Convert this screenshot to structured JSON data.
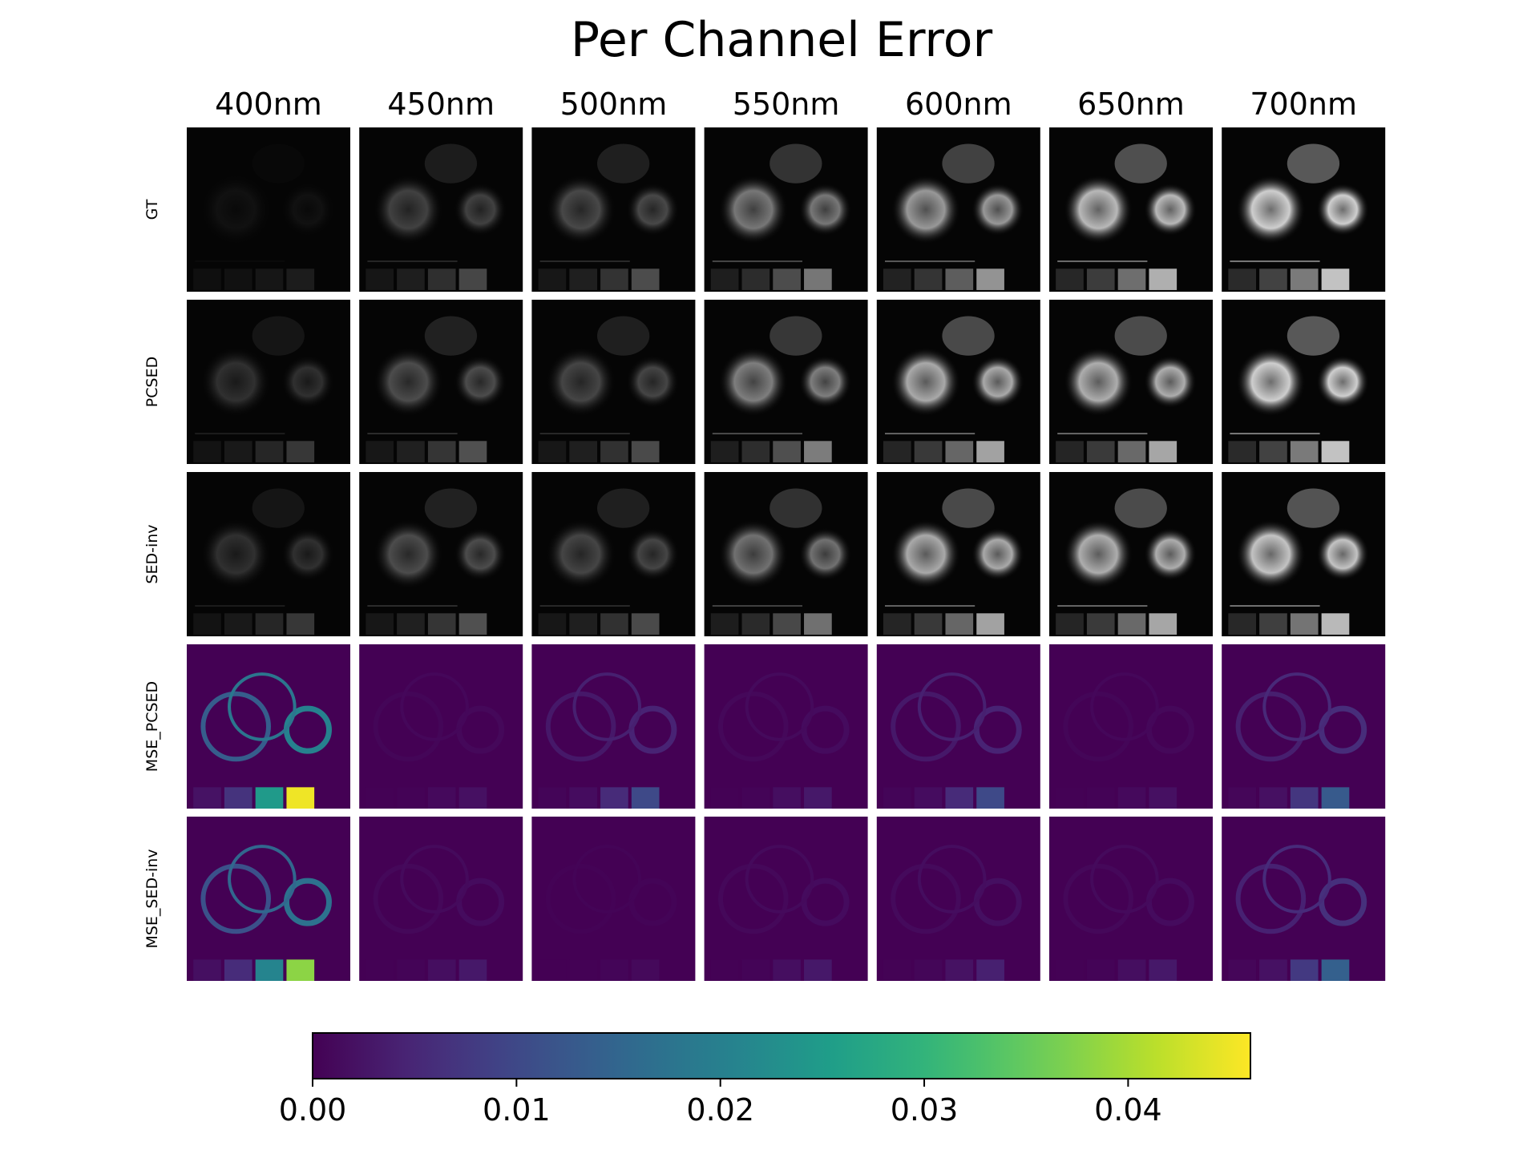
{
  "chart_data": {
    "type": "heatmap",
    "title": "Per Channel Error",
    "columns": [
      "400nm",
      "450nm",
      "500nm",
      "550nm",
      "600nm",
      "650nm",
      "700nm"
    ],
    "rows": [
      {
        "label": "GT",
        "kind": "grayscale",
        "brightness": [
          0.08,
          0.3,
          0.33,
          0.55,
          0.7,
          0.85,
          0.95
        ]
      },
      {
        "label": "PCSED",
        "kind": "grayscale",
        "brightness": [
          0.22,
          0.35,
          0.32,
          0.58,
          0.78,
          0.8,
          0.95
        ]
      },
      {
        "label": "SED-inv",
        "kind": "grayscale",
        "brightness": [
          0.22,
          0.35,
          0.32,
          0.52,
          0.78,
          0.8,
          0.9
        ]
      },
      {
        "label": "MSE_PCSED",
        "kind": "error",
        "peak_error": [
          0.045,
          0.002,
          0.01,
          0.003,
          0.01,
          0.002,
          0.013
        ]
      },
      {
        "label": "MSE_SED-inv",
        "kind": "error",
        "peak_error": [
          0.038,
          0.003,
          0.001,
          0.003,
          0.004,
          0.003,
          0.014
        ]
      }
    ],
    "colorbar": {
      "colormap": "viridis",
      "min": 0.0,
      "max": 0.046,
      "ticks": [
        0.0,
        0.01,
        0.02,
        0.03,
        0.04
      ],
      "tick_labels": [
        "0.00",
        "0.01",
        "0.02",
        "0.03",
        "0.04"
      ],
      "orientation": "horizontal",
      "placement": "bottom"
    },
    "xlabel": "",
    "ylabel": ""
  }
}
